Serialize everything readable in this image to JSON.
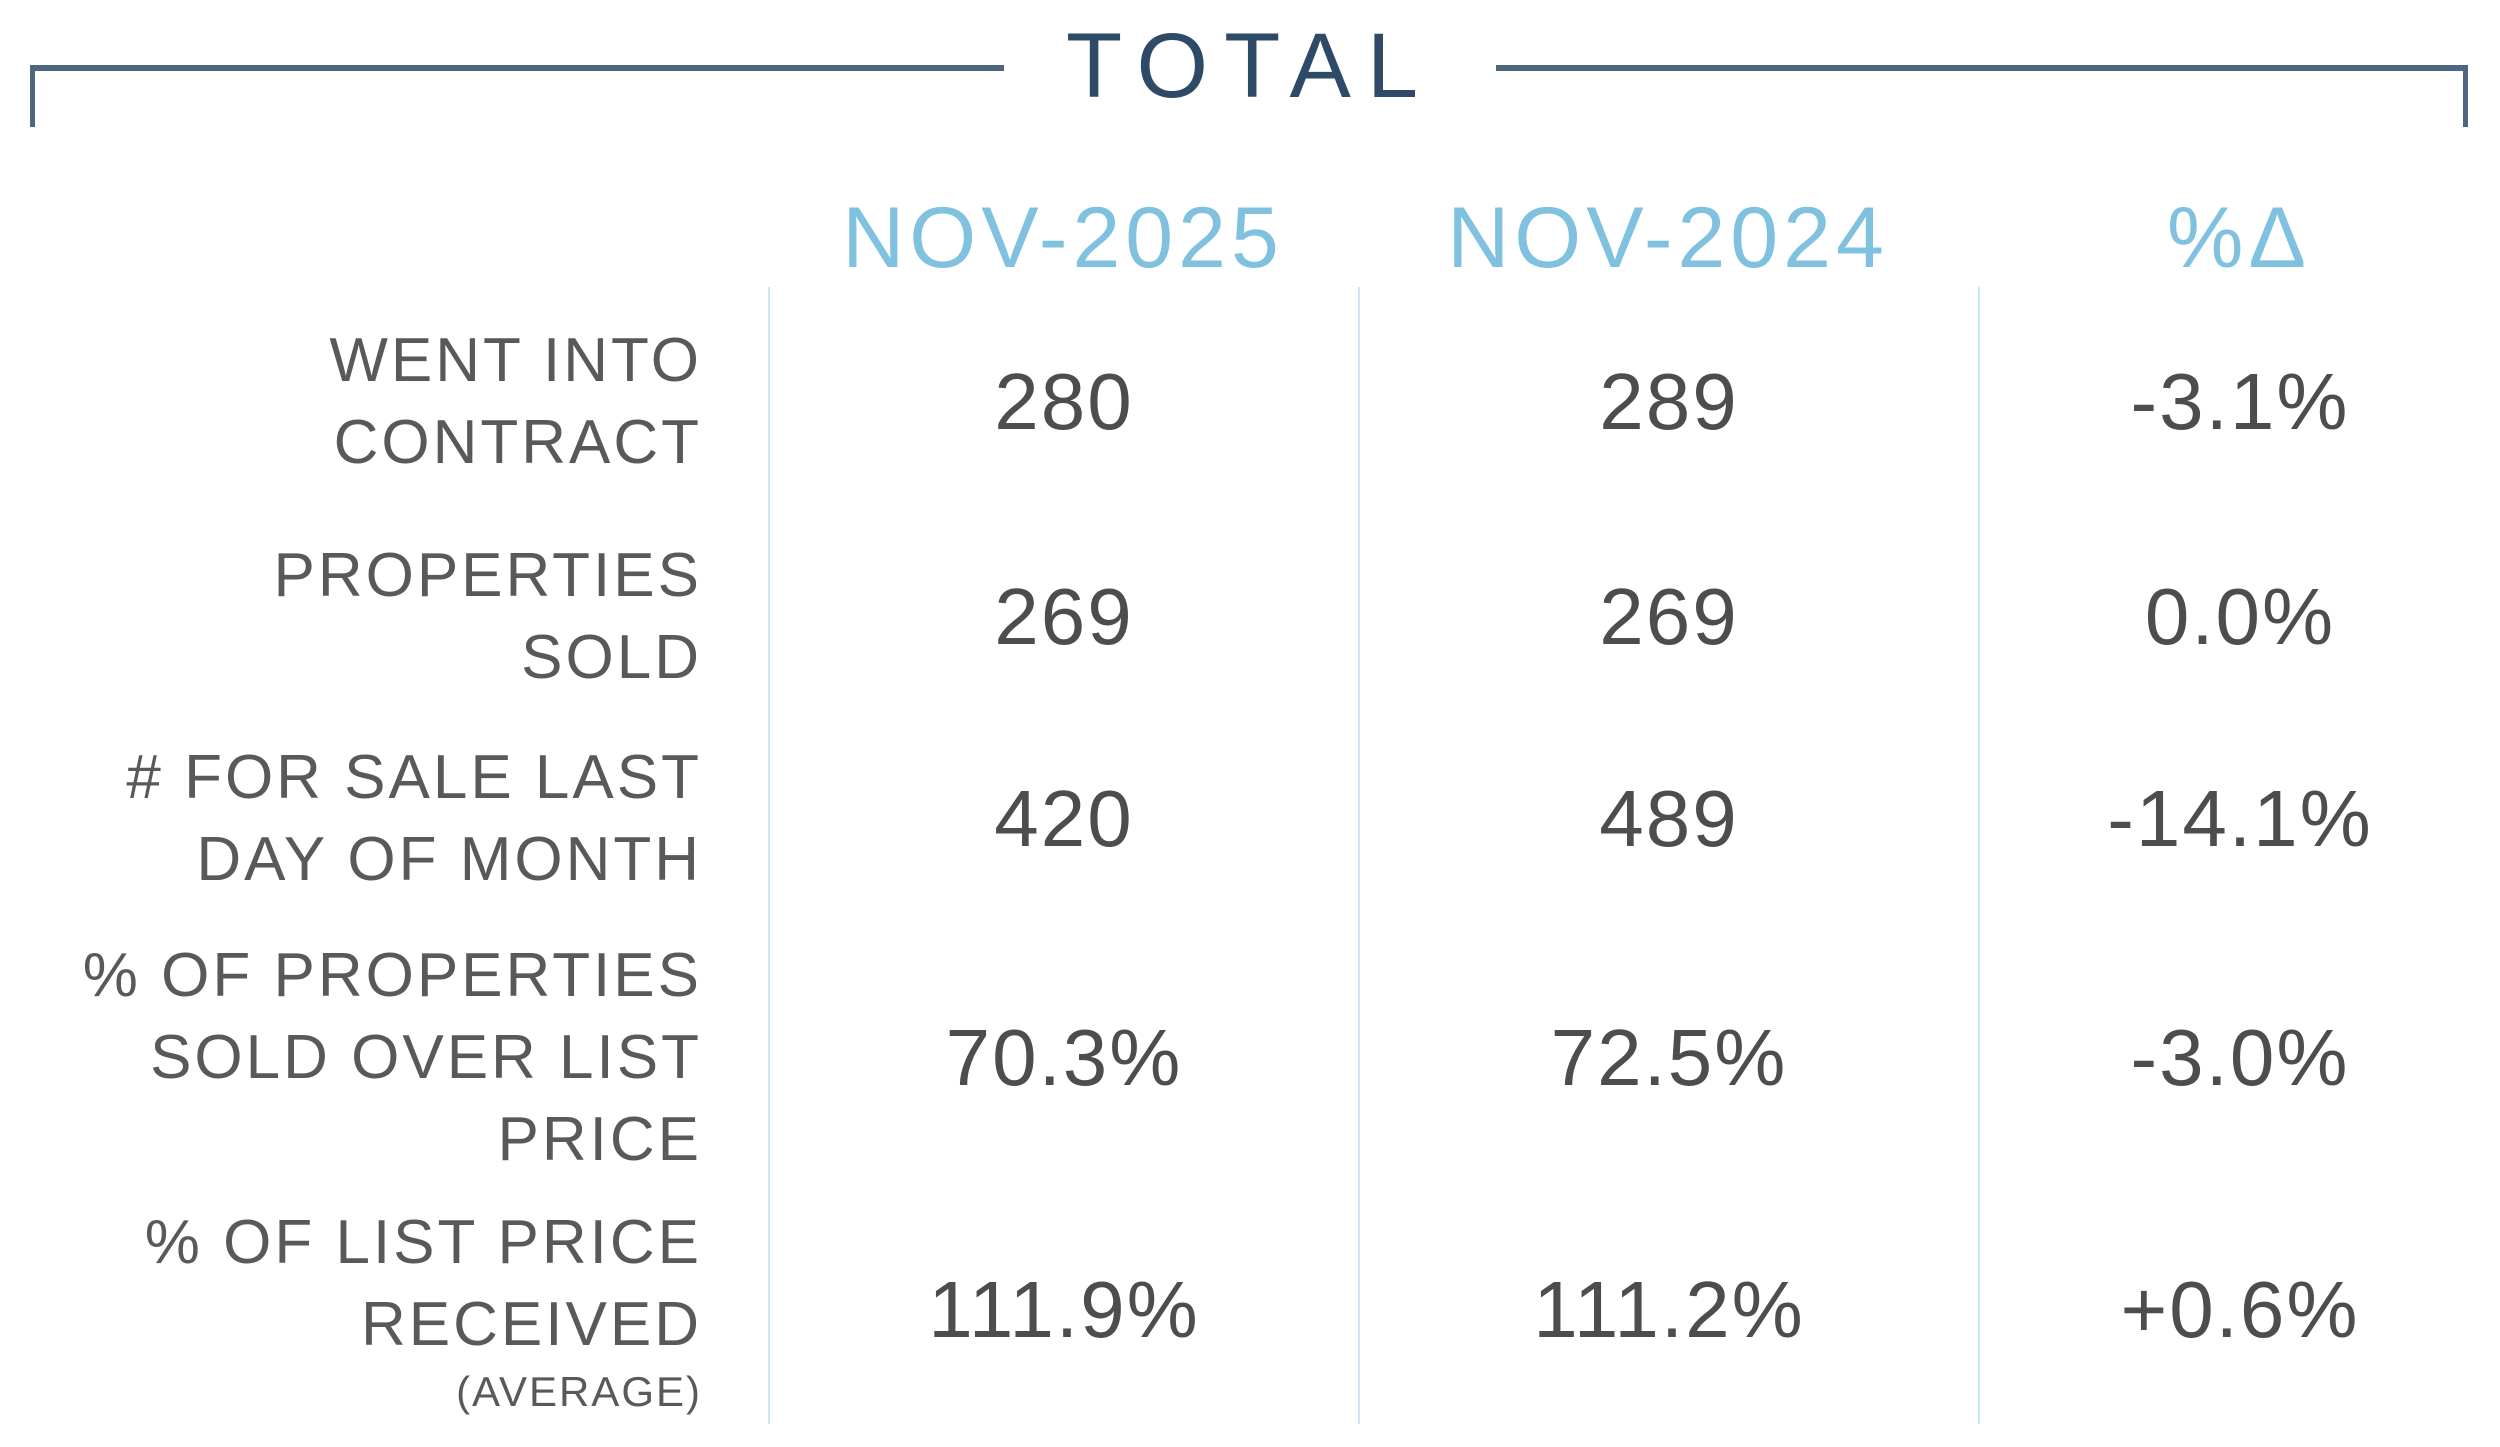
{
  "section": {
    "title": "TOTAL"
  },
  "chart_data": {
    "type": "table",
    "title": "TOTAL",
    "columns": [
      "NOV-2025",
      "NOV-2024",
      "%Δ"
    ],
    "rows": [
      {
        "label": "WENT INTO CONTRACT",
        "label_lines": [
          "WENT INTO",
          "CONTRACT"
        ],
        "values": [
          "280",
          "289",
          "-3.1%"
        ]
      },
      {
        "label": "PROPERTIES SOLD",
        "label_lines": [
          "PROPERTIES",
          "SOLD"
        ],
        "values": [
          "269",
          "269",
          "0.0%"
        ]
      },
      {
        "label": "# FOR SALE LAST DAY OF MONTH",
        "label_lines": [
          "# FOR SALE LAST",
          "DAY OF MONTH"
        ],
        "values": [
          "420",
          "489",
          "-14.1%"
        ]
      },
      {
        "label": "% OF PROPERTIES SOLD OVER LIST PRICE",
        "label_lines": [
          "% OF PROPERTIES",
          "SOLD OVER LIST",
          "PRICE"
        ],
        "values": [
          "70.3%",
          "72.5%",
          "-3.0%"
        ]
      },
      {
        "label": "% OF LIST PRICE RECEIVED (AVERAGE)",
        "label_lines": [
          "% OF LIST PRICE",
          "RECEIVED"
        ],
        "note": "(AVERAGE)",
        "values": [
          "111.9%",
          "111.2%",
          "+0.6%"
        ]
      }
    ]
  },
  "colors": {
    "title_navy": "#2f4a66",
    "bracket_line": "#4e6780",
    "header_blue": "#7fc1de",
    "divider_blue": "#c9e9f4",
    "label_gray": "#58595b",
    "value_gray": "#4c4d4f"
  }
}
